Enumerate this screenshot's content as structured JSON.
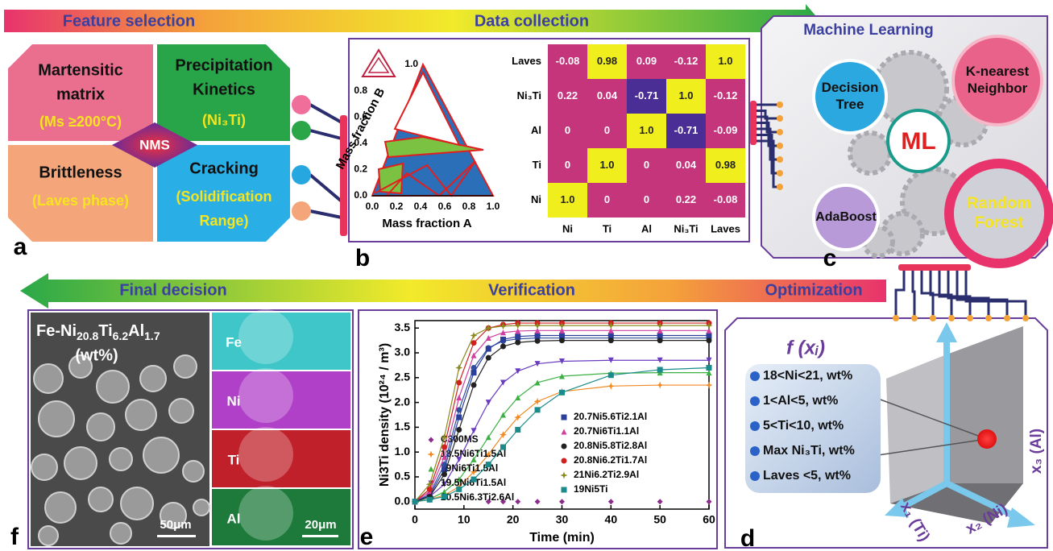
{
  "banners": {
    "top": {
      "left": "Feature selection",
      "right": "Data collection"
    },
    "bottom": {
      "left": "Final decision",
      "middle": "Verification",
      "right": "Optimization"
    }
  },
  "panel_a": {
    "label": "a",
    "center": "NMS",
    "blocks": [
      {
        "title": [
          "Martensitic",
          "matrix"
        ],
        "note": [
          "(Ms ≥200°C)"
        ]
      },
      {
        "title": [
          "Precipitation",
          "Kinetics"
        ],
        "note": [
          "(Ni₃Ti)"
        ]
      },
      {
        "title": [
          "Brittleness"
        ],
        "note": [
          "(Laves phase)"
        ]
      },
      {
        "title": [
          "Cracking"
        ],
        "note": [
          "(Solidification",
          "Range)"
        ]
      }
    ]
  },
  "panel_b": {
    "label": "b",
    "ternary": {
      "xlabel": "Mass fraction A",
      "ylabel": "Mass fraction B",
      "xticks": [
        "0.0",
        "0.2",
        "0.4",
        "0.6",
        "0.8",
        "1.0"
      ],
      "yticks": [
        "0.0",
        "0.2",
        "0.4",
        "0.6",
        "0.8",
        "1.0"
      ]
    },
    "heatmap": {
      "rows": [
        "Laves",
        "Ni₃Ti",
        "Al",
        "Ti",
        "Ni"
      ],
      "columns": [
        "Ni",
        "Ti",
        "Al",
        "Ni₃Ti",
        "Laves"
      ],
      "cells": [
        [
          "-0.08",
          "0.98",
          "0.09",
          "-0.12",
          "1.0"
        ],
        [
          "0.22",
          "0.04",
          "-0.71",
          "1.0",
          "-0.12"
        ],
        [
          "0",
          "0",
          "1.0",
          "-0.71",
          "-0.09"
        ],
        [
          "0",
          "1.0",
          "0",
          "0.04",
          "0.98"
        ],
        [
          "1.0",
          "0",
          "0",
          "0.22",
          "-0.08"
        ]
      ]
    }
  },
  "panel_c": {
    "label": "c",
    "title": "Machine Learning",
    "center": "ML",
    "models": [
      [
        "Decision",
        "Tree"
      ],
      [
        "K-nearest",
        "Neighbor"
      ],
      [
        "AdaBoost"
      ],
      [
        "Random",
        "Forest"
      ]
    ]
  },
  "panel_d": {
    "label": "d",
    "function": "f (xᵢ)",
    "constraints": [
      "18<Ni<21, wt%",
      "1<Al<5, wt%",
      "5<Ti<10, wt%",
      "Max Ni₃Ti, wt%",
      "Laves <5, wt%"
    ],
    "axes": [
      "x₃ (Al)",
      "x₁ (Ti)",
      "x₂ (Ni)"
    ]
  },
  "panel_e": {
    "label": "e",
    "type": "line",
    "xlabel": "Time (min)",
    "ylabel": "Ni3Ti density (10²⁴ / m³)",
    "x": [
      0,
      3,
      6,
      9,
      12,
      15,
      18,
      21,
      25,
      30,
      40,
      50,
      60
    ],
    "xlim": [
      0,
      60
    ],
    "ylim": [
      -0.15,
      3.65
    ],
    "xticks": [
      0,
      10,
      20,
      30,
      40,
      50,
      60
    ],
    "yticks": [
      {
        "value": 0,
        "label": "0.0"
      },
      0.5,
      {
        "value": 1,
        "label": "1.0"
      },
      1.5,
      {
        "value": 2,
        "label": "2.0"
      },
      2.5,
      {
        "value": 3,
        "label": "3.0"
      },
      3.5
    ],
    "series": [
      {
        "name": "C300MS",
        "color": "#8b2b8b",
        "marker": "diamond",
        "values": [
          null,
          null,
          null,
          null,
          null,
          0,
          0,
          0,
          0,
          0,
          0,
          0,
          0
        ]
      },
      {
        "name": "18.5Ni6Ti1.5Al",
        "color": "#f08a24",
        "marker": "star",
        "values": [
          0,
          0.04,
          0.13,
          0.3,
          0.6,
          0.95,
          1.35,
          1.7,
          2.02,
          2.22,
          2.33,
          2.35,
          2.35
        ]
      },
      {
        "name": "19Ni6Ti1.5Al",
        "color": "#3cb043",
        "marker": "triangle",
        "values": [
          0,
          0.05,
          0.2,
          0.45,
          0.85,
          1.3,
          1.75,
          2.1,
          2.4,
          2.53,
          2.59,
          2.6,
          2.6
        ]
      },
      {
        "name": "19.5Ni6Ti1.5Al",
        "color": "#6a3cc0",
        "marker": "triangle-down",
        "values": [
          0,
          0.1,
          0.35,
          0.85,
          1.43,
          2.0,
          2.4,
          2.63,
          2.78,
          2.83,
          2.85,
          2.85,
          2.85
        ]
      },
      {
        "name": "20.5Ni6.3Ti2.6Al",
        "color": "#3050a0",
        "marker": "circle",
        "values": [
          0,
          0.15,
          0.75,
          1.85,
          2.7,
          3.1,
          3.24,
          3.28,
          3.3,
          3.3,
          3.3,
          3.3,
          3.3
        ]
      },
      {
        "name": "20.7Ni5.6Ti2.1Al",
        "color": "#2a3e9a",
        "marker": "square",
        "values": [
          0,
          0.12,
          0.65,
          1.7,
          2.6,
          3.08,
          3.27,
          3.33,
          3.35,
          3.35,
          3.35,
          3.35,
          3.35
        ]
      },
      {
        "name": "20.7Ni6Ti1.1Al",
        "color": "#d040a0",
        "marker": "triangle",
        "values": [
          0,
          0.2,
          0.9,
          2.1,
          2.95,
          3.3,
          3.41,
          3.44,
          3.45,
          3.45,
          3.45,
          3.45,
          3.45
        ]
      },
      {
        "name": "20.8Ni5.8Ti2.8Al",
        "color": "#222222",
        "marker": "circle",
        "values": [
          0,
          0.1,
          0.55,
          1.45,
          2.35,
          2.9,
          3.13,
          3.21,
          3.24,
          3.25,
          3.25,
          3.25,
          3.25
        ]
      },
      {
        "name": "20.8Ni6.2Ti1.7Al",
        "color": "#d02020",
        "marker": "circle",
        "values": [
          0,
          0.25,
          1.1,
          2.4,
          3.2,
          3.5,
          3.57,
          3.6,
          3.6,
          3.6,
          3.6,
          3.6,
          3.6
        ]
      },
      {
        "name": "21Ni6.2Ti2.9Al",
        "color": "#8a8a20",
        "marker": "star",
        "values": [
          0,
          0.35,
          1.3,
          2.7,
          3.35,
          3.5,
          3.54,
          3.55,
          3.55,
          3.55,
          3.55,
          3.55,
          3.55
        ]
      },
      {
        "name": "19Ni5Ti",
        "color": "#1a8a8a",
        "marker": "square",
        "values": [
          0,
          0.04,
          0.1,
          0.25,
          0.45,
          0.75,
          1.1,
          1.45,
          1.85,
          2.2,
          2.55,
          2.66,
          2.7
        ]
      }
    ]
  },
  "panel_f": {
    "label": "f",
    "composition": [
      "Fe-Ni",
      "20.8",
      "Ti",
      "6.2",
      "Al",
      "1.7"
    ],
    "unit": "(wt%)",
    "maps": [
      "Fe",
      "Ni",
      "Ti",
      "Al"
    ],
    "scale_bars": [
      "50μm",
      "20μm"
    ]
  }
}
